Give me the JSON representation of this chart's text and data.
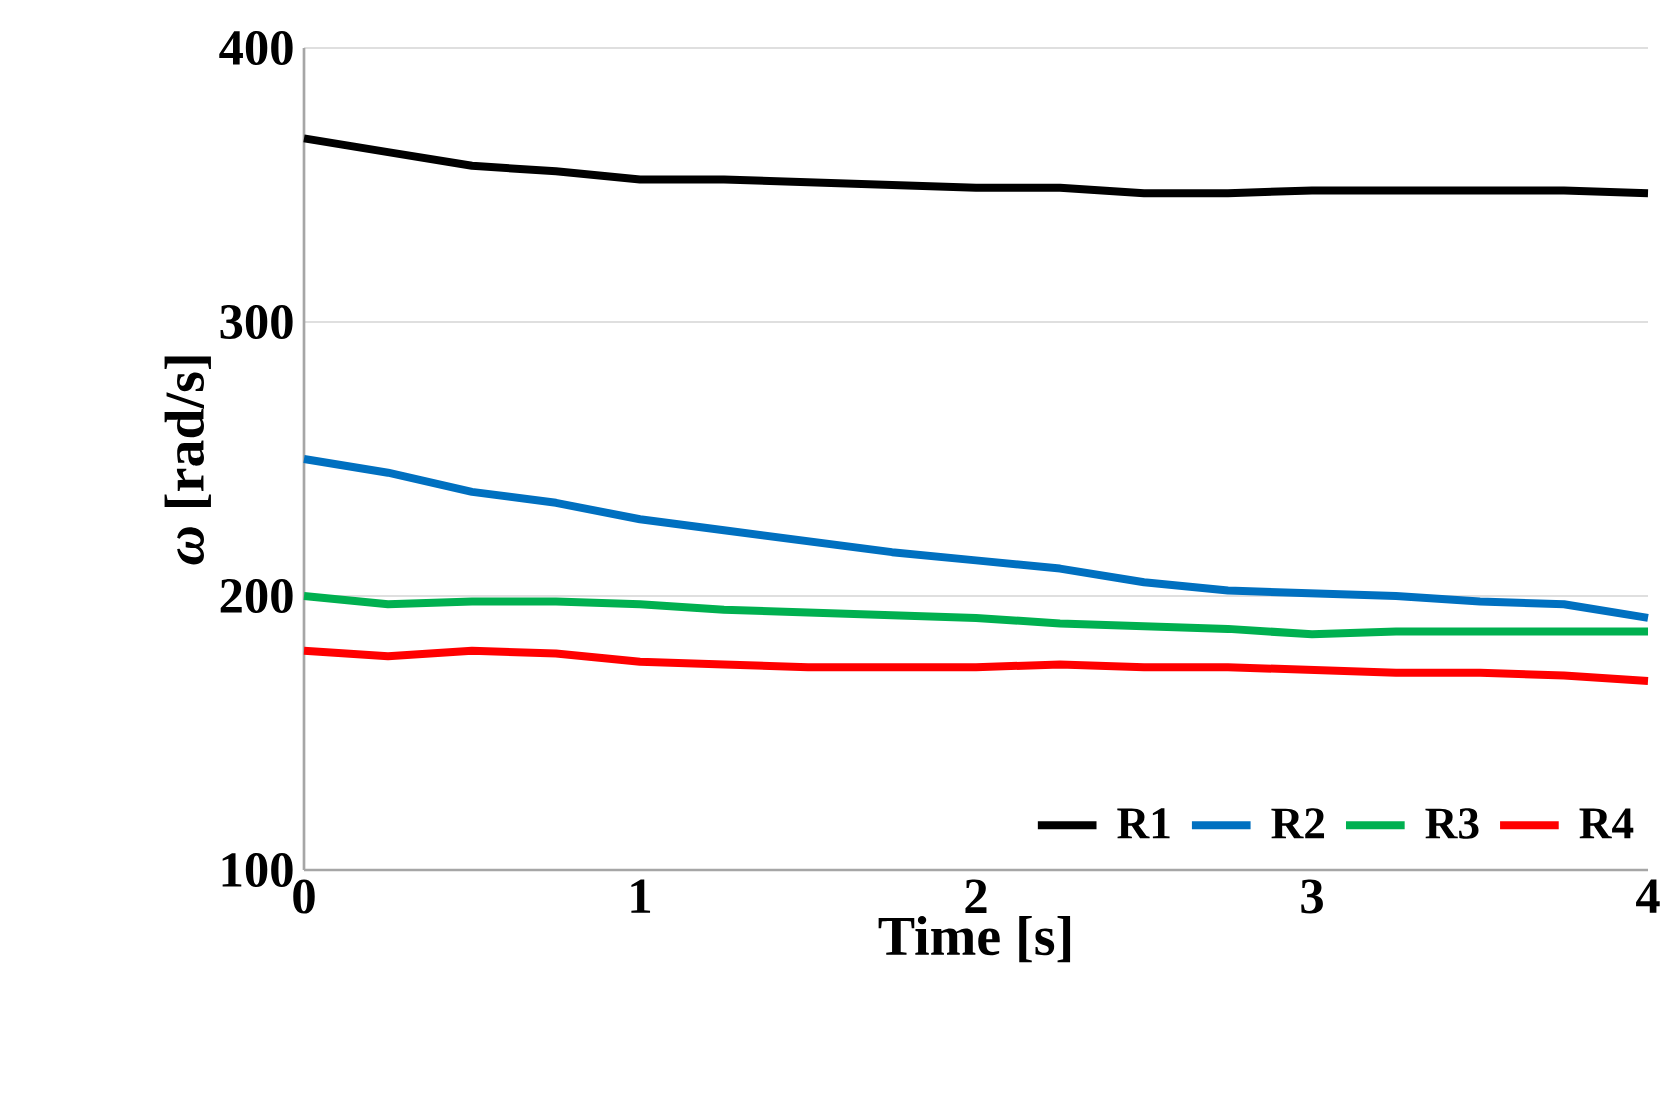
{
  "chart_data": {
    "type": "line",
    "xlabel": "Time [s]",
    "ylabel": "*ω* [rad/s]",
    "x": [
      0,
      0.25,
      0.5,
      0.75,
      1,
      1.25,
      1.5,
      1.75,
      2,
      2.25,
      2.5,
      2.75,
      3,
      3.25,
      3.5,
      3.75,
      4
    ],
    "series": [
      {
        "name": "R1",
        "color": "#000000",
        "values": [
          367,
          362,
          357,
          355,
          352,
          352,
          351,
          350,
          349,
          349,
          347,
          347,
          348,
          348,
          348,
          348,
          347
        ]
      },
      {
        "name": "R2",
        "color": "#0070c0",
        "values": [
          250,
          245,
          238,
          234,
          228,
          224,
          220,
          216,
          213,
          210,
          205,
          202,
          201,
          200,
          198,
          197,
          192
        ]
      },
      {
        "name": "R3",
        "color": "#00b050",
        "values": [
          200,
          197,
          198,
          198,
          197,
          195,
          194,
          193,
          192,
          190,
          189,
          188,
          186,
          187,
          187,
          187,
          187
        ]
      },
      {
        "name": "R4",
        "color": "#ff0000",
        "values": [
          180,
          178,
          180,
          179,
          176,
          175,
          174,
          174,
          174,
          175,
          174,
          174,
          173,
          172,
          172,
          171,
          169
        ]
      }
    ],
    "xlim": [
      0,
      4
    ],
    "ylim": [
      100,
      400
    ],
    "xticks": [
      0,
      1,
      2,
      3,
      4
    ],
    "yticks": [
      100,
      200,
      300,
      400
    ],
    "grid": "y",
    "legend": "bottom right",
    "marker": "none",
    "line_style": "solid"
  }
}
